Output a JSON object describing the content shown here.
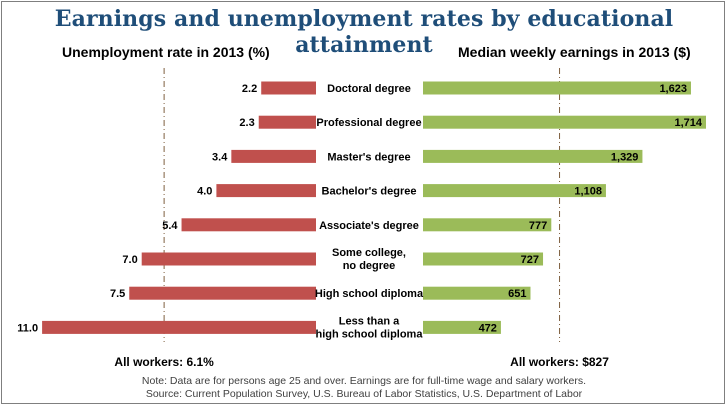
{
  "title": "Earnings and unemployment rates by educational attainment",
  "notes": [
    "Note: Data are for persons age 25 and over. Earnings are for full-time wage and salary workers.",
    "Source: Current Population Survey, U.S. Bureau of Labor Statistics, U.S. Department of Labor"
  ],
  "colors": {
    "title": "#1f4e79",
    "unemployment_bar": "#c0504d",
    "earnings_bar": "#9bbb59",
    "reference_line": "#7f5f3f"
  },
  "chart_data": [
    {
      "type": "bar",
      "orientation": "horizontal",
      "title": "Unemployment rate in 2013 (%)",
      "categories": [
        "Doctoral degree",
        "Professional degree",
        "Master's degree",
        "Bachelor's degree",
        "Associate's degree",
        "Some college, no degree",
        "High school diploma",
        "Less than a high school diploma"
      ],
      "category_label_lines": [
        [
          "Doctoral degree"
        ],
        [
          "Professional degree"
        ],
        [
          "Master's degree"
        ],
        [
          "Bachelor's degree"
        ],
        [
          "Associate's degree"
        ],
        [
          "Some college,",
          "no degree"
        ],
        [
          "High school diploma"
        ],
        [
          "Less than a",
          "high school diploma"
        ]
      ],
      "values": [
        2.2,
        2.3,
        3.4,
        4.0,
        5.4,
        7.0,
        7.5,
        11.0
      ],
      "value_labels": [
        "2.2",
        "2.3",
        "3.4",
        "4.0",
        "5.4",
        "7.0",
        "7.5",
        "11.0"
      ],
      "reference": {
        "value": 6.1,
        "label": "All workers: 6.1%"
      },
      "direction": "right-to-left",
      "xlim": [
        0,
        11.4
      ]
    },
    {
      "type": "bar",
      "orientation": "horizontal",
      "title": "Median weekly earnings in 2013 ($)",
      "categories": [
        "Doctoral degree",
        "Professional degree",
        "Master's degree",
        "Bachelor's degree",
        "Associate's degree",
        "Some college, no degree",
        "High school diploma",
        "Less than a high school diploma"
      ],
      "values": [
        1623,
        1714,
        1329,
        1108,
        777,
        727,
        651,
        472
      ],
      "value_labels": [
        "1,623",
        "1,714",
        "1,329",
        "1,108",
        "777",
        "727",
        "651",
        "472"
      ],
      "reference": {
        "value": 827,
        "label": "All workers: $827"
      },
      "direction": "left-to-right",
      "xlim": [
        0,
        1730
      ]
    }
  ]
}
